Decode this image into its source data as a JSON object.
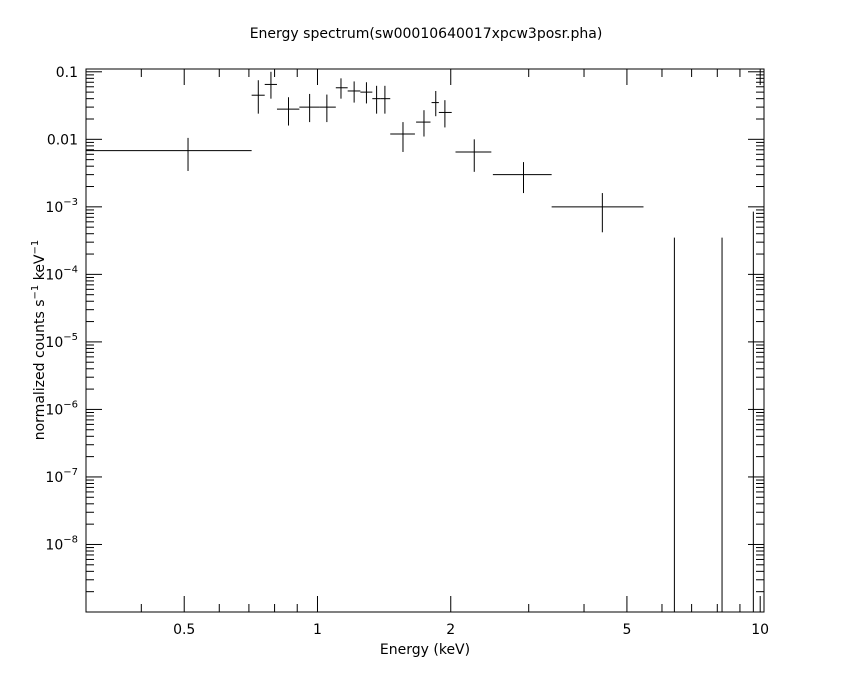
{
  "chart_data": {
    "type": "scatter",
    "title": "Energy spectrum(sw00010640017xpcw3posr.pha)",
    "xlabel": "Energy (keV)",
    "ylabel": {
      "prefix": "normalized counts s",
      "exp1": "−1",
      "middle": " keV",
      "exp2": "−1"
    },
    "xscale": "log",
    "yscale": "log",
    "xlim": [
      0.3,
      10.2
    ],
    "ylim": [
      1e-09,
      0.11
    ],
    "x_ticks": [
      {
        "value": 0.5,
        "label": "0.5"
      },
      {
        "value": 1,
        "label": "1"
      },
      {
        "value": 2,
        "label": "2"
      },
      {
        "value": 5,
        "label": "5"
      },
      {
        "value": 10,
        "label": "10"
      }
    ],
    "y_ticks": [
      {
        "value": 0.1,
        "base": "0.1",
        "exp": ""
      },
      {
        "value": 0.01,
        "base": "0.01",
        "exp": ""
      },
      {
        "value": 0.001,
        "base": "10",
        "exp": "−3"
      },
      {
        "value": 0.0001,
        "base": "10",
        "exp": "−4"
      },
      {
        "value": 1e-05,
        "base": "10",
        "exp": "−5"
      },
      {
        "value": 1e-06,
        "base": "10",
        "exp": "−6"
      },
      {
        "value": 1e-07,
        "base": "10",
        "exp": "−7"
      },
      {
        "value": 1e-08,
        "base": "10",
        "exp": "−8"
      }
    ],
    "points": [
      {
        "x": 0.51,
        "xlo": 0.3,
        "xhi": 0.71,
        "y": 0.0068,
        "ylo": 0.0034,
        "yhi": 0.0105
      },
      {
        "x": 0.735,
        "xlo": 0.71,
        "xhi": 0.76,
        "y": 0.045,
        "ylo": 0.024,
        "yhi": 0.075
      },
      {
        "x": 0.785,
        "xlo": 0.76,
        "xhi": 0.81,
        "y": 0.065,
        "ylo": 0.04,
        "yhi": 0.1
      },
      {
        "x": 0.86,
        "xlo": 0.81,
        "xhi": 0.91,
        "y": 0.028,
        "ylo": 0.016,
        "yhi": 0.042
      },
      {
        "x": 0.96,
        "xlo": 0.91,
        "xhi": 1.01,
        "y": 0.03,
        "ylo": 0.018,
        "yhi": 0.047
      },
      {
        "x": 1.05,
        "xlo": 1.01,
        "xhi": 1.1,
        "y": 0.03,
        "ylo": 0.018,
        "yhi": 0.046
      },
      {
        "x": 1.13,
        "xlo": 1.1,
        "xhi": 1.17,
        "y": 0.058,
        "ylo": 0.04,
        "yhi": 0.08
      },
      {
        "x": 1.21,
        "xlo": 1.17,
        "xhi": 1.25,
        "y": 0.052,
        "ylo": 0.035,
        "yhi": 0.072
      },
      {
        "x": 1.29,
        "xlo": 1.25,
        "xhi": 1.33,
        "y": 0.05,
        "ylo": 0.034,
        "yhi": 0.07
      },
      {
        "x": 1.36,
        "xlo": 1.33,
        "xhi": 1.39,
        "y": 0.04,
        "ylo": 0.024,
        "yhi": 0.062
      },
      {
        "x": 1.42,
        "xlo": 1.39,
        "xhi": 1.46,
        "y": 0.04,
        "ylo": 0.024,
        "yhi": 0.062
      },
      {
        "x": 1.56,
        "xlo": 1.46,
        "xhi": 1.66,
        "y": 0.012,
        "ylo": 0.0065,
        "yhi": 0.018
      },
      {
        "x": 1.74,
        "xlo": 1.67,
        "xhi": 1.8,
        "y": 0.018,
        "ylo": 0.011,
        "yhi": 0.027
      },
      {
        "x": 1.85,
        "xlo": 1.81,
        "xhi": 1.88,
        "y": 0.035,
        "ylo": 0.022,
        "yhi": 0.052
      },
      {
        "x": 1.94,
        "xlo": 1.88,
        "xhi": 2.01,
        "y": 0.025,
        "ylo": 0.015,
        "yhi": 0.038
      },
      {
        "x": 2.26,
        "xlo": 2.05,
        "xhi": 2.47,
        "y": 0.0065,
        "ylo": 0.0033,
        "yhi": 0.01
      },
      {
        "x": 2.92,
        "xlo": 2.49,
        "xhi": 3.38,
        "y": 0.003,
        "ylo": 0.0016,
        "yhi": 0.0046
      },
      {
        "x": 4.4,
        "xlo": 3.38,
        "xhi": 5.45,
        "y": 0.001,
        "ylo": 0.00042,
        "yhi": 0.0016
      }
    ],
    "upper_bars": [
      {
        "x": 6.4,
        "y": 0.00035
      },
      {
        "x": 8.2,
        "y": 0.00035
      },
      {
        "x": 9.65,
        "y": 0.00085
      }
    ]
  }
}
